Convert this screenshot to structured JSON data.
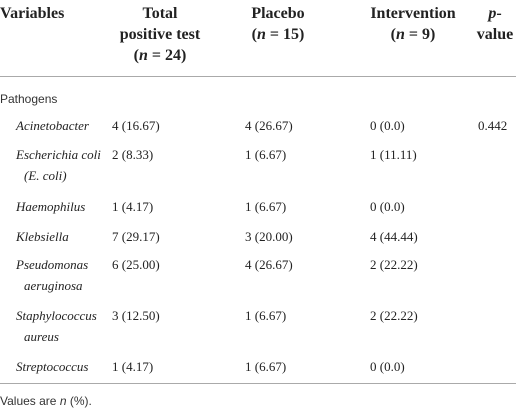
{
  "header": [
    {
      "lines": [
        [
          "Variables"
        ]
      ]
    },
    {
      "lines": [
        [
          "Total"
        ],
        [
          "positive test"
        ],
        [
          "(",
          {
            "text": "n",
            "italic": true
          },
          " = 24)"
        ]
      ]
    },
    {
      "lines": [
        [
          "Placebo"
        ],
        [
          "(",
          {
            "text": "n",
            "italic": true
          },
          " = 15)"
        ]
      ]
    },
    {
      "lines": [
        [
          "Intervention"
        ],
        [
          "(",
          {
            "text": "n",
            "italic": true
          },
          " = 9)"
        ]
      ]
    },
    {
      "lines": [
        [
          {
            "text": "p",
            "italic": true
          },
          "-"
        ],
        [
          "value"
        ]
      ]
    }
  ],
  "section": "Pathogens",
  "rows": [
    {
      "name": "Acinetobacter",
      "cells": [
        "4 (16.67)",
        "4 (26.67)",
        "0 (0.0)",
        "0.442"
      ]
    },
    {
      "name": "Escherichia coli (E. coli)",
      "cells": [
        "2 (8.33)",
        "1 (6.67)",
        "1 (11.11)",
        null
      ]
    },
    {
      "name": "Haemophilus",
      "cells": [
        "1 (4.17)",
        "1 (6.67)",
        "0 (0.0)",
        null
      ]
    },
    {
      "name": "Klebsiella",
      "cells": [
        "7 (29.17)",
        "3 (20.00)",
        "4 (44.44)",
        null
      ]
    },
    {
      "name": "Pseudomonas aeruginosa",
      "cells": [
        "6 (25.00)",
        "4 (26.67)",
        "2 (22.22)",
        null
      ]
    },
    {
      "name": "Staphylococcus aureus",
      "cells": [
        "3 (12.50)",
        "1 (6.67)",
        "2 (22.22)",
        null
      ]
    },
    {
      "name": "Streptococcus",
      "cells": [
        "1 (4.17)",
        "1 (6.67)",
        "0 (0.0)",
        null
      ]
    }
  ],
  "footer": [
    "Values are ",
    {
      "text": "n",
      "italic": true
    },
    " (%)."
  ]
}
